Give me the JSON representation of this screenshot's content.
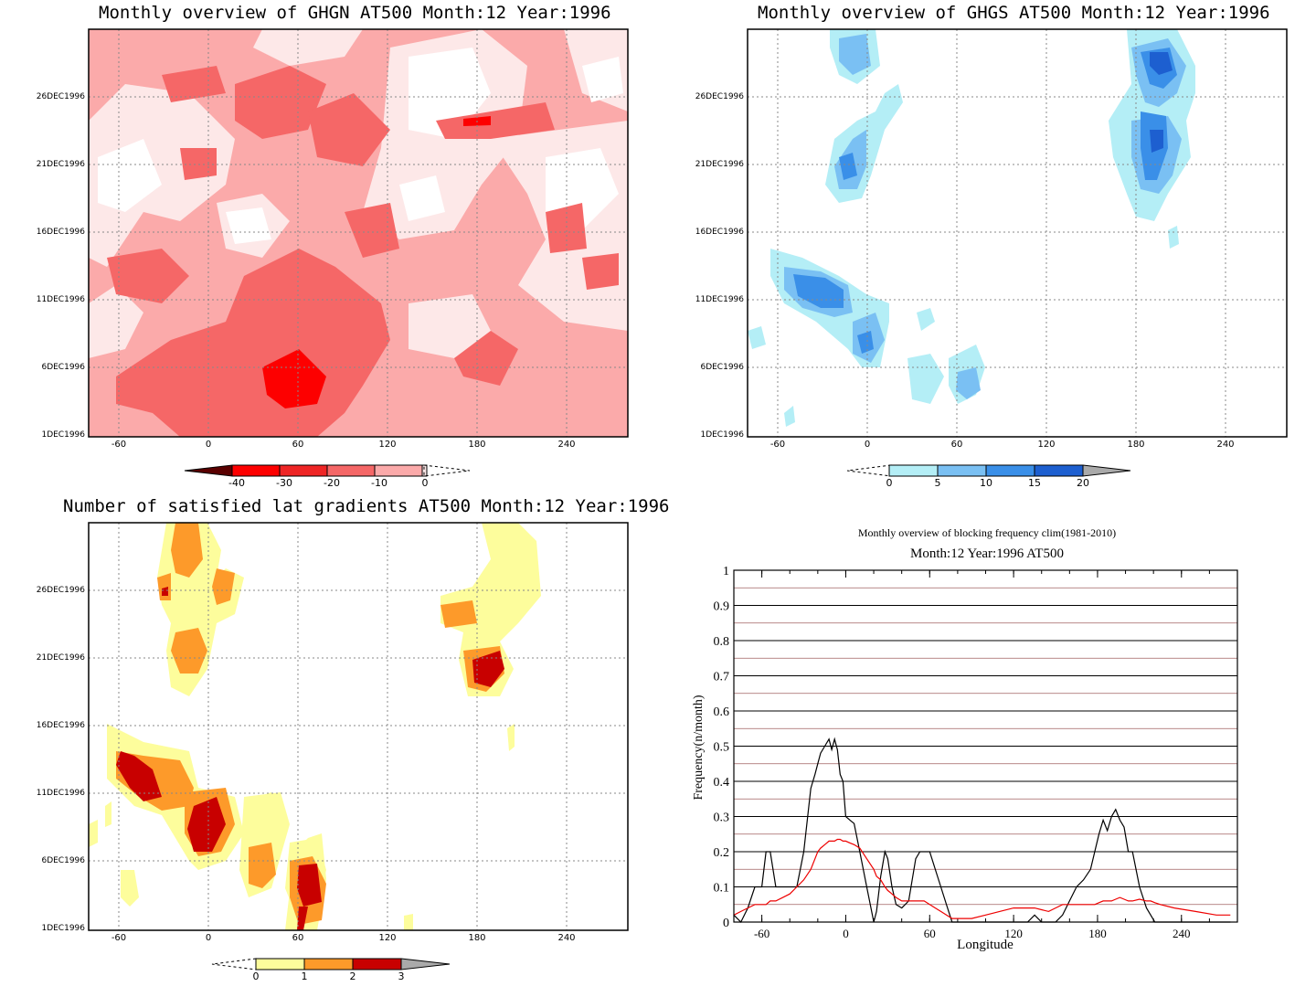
{
  "panels": {
    "ghgn": {
      "title": "Monthly overview of GHGN AT500 Month:12 Year:1996",
      "yticks": [
        "26DEC1996",
        "21DEC1996",
        "16DEC1996",
        "11DEC1996",
        "6DEC1996",
        "1DEC1996"
      ],
      "xticks": [
        "-60",
        "0",
        "60",
        "120",
        "180",
        "240"
      ],
      "colorbar": [
        "-40",
        "-30",
        "-20",
        "-10",
        "0"
      ],
      "colors": [
        "#ffffff",
        "#fde8e8",
        "#fbaaaa",
        "#f56767",
        "#ee2525",
        "#fd0000",
        "#5a0000"
      ]
    },
    "ghgs": {
      "title": "Monthly overview of GHGS AT500 Month:12 Year:1996",
      "yticks": [
        "26DEC1996",
        "21DEC1996",
        "16DEC1996",
        "11DEC1996",
        "6DEC1996",
        "1DEC1996"
      ],
      "xticks": [
        "-60",
        "0",
        "60",
        "120",
        "180",
        "240"
      ],
      "colorbar": [
        "0",
        "5",
        "10",
        "15",
        "20"
      ],
      "colors": [
        "#b4eef6",
        "#7ac0f3",
        "#3a8fe8",
        "#1d5fd0",
        "#aaaaaa"
      ]
    },
    "gradients": {
      "title": "Number of satisfied lat gradients AT500 Month:12 Year:1996",
      "yticks": [
        "26DEC1996",
        "21DEC1996",
        "16DEC1996",
        "11DEC1996",
        "6DEC1996",
        "1DEC1996"
      ],
      "xticks": [
        "-60",
        "0",
        "60",
        "120",
        "180",
        "240"
      ],
      "colorbar": [
        "0",
        "1",
        "2",
        "3"
      ],
      "colors": [
        "#fdfd9c",
        "#fd9a2a",
        "#c80000",
        "#aaaaaa"
      ]
    },
    "frequency": {
      "title": "Monthly overview of blocking frequency clim(1981-2010)",
      "subtitle": "Month:12 Year:1996  AT500",
      "ylabel": "Frequency(n/month)",
      "xlabel": "Longitude",
      "yticks": [
        "0",
        "0.1",
        "0.2",
        "0.3",
        "0.4",
        "0.5",
        "0.6",
        "0.7",
        "0.8",
        "0.9",
        "1"
      ],
      "xticks": [
        "-60",
        "0",
        "60",
        "120",
        "180",
        "240"
      ],
      "series_colors": [
        "#000000",
        "#ee0000"
      ]
    }
  },
  "chart_data": [
    {
      "type": "heatmap",
      "title": "Monthly overview of GHGN AT500 Month:12 Year:1996",
      "xlim": [
        -75,
        285
      ],
      "ylim": [
        "1DEC1996",
        "31DEC1996"
      ],
      "levels": [
        -40,
        -30,
        -20,
        -10,
        0
      ]
    },
    {
      "type": "heatmap",
      "title": "Monthly overview of GHGS AT500 Month:12 Year:1996",
      "xlim": [
        -75,
        285
      ],
      "ylim": [
        "1DEC1996",
        "31DEC1996"
      ],
      "levels": [
        0,
        5,
        10,
        15,
        20
      ]
    },
    {
      "type": "heatmap",
      "title": "Number of satisfied lat gradients AT500 Month:12 Year:1996",
      "xlim": [
        -75,
        285
      ],
      "ylim": [
        "1DEC1996",
        "31DEC1996"
      ],
      "levels": [
        0,
        1,
        2,
        3
      ]
    },
    {
      "type": "line",
      "title": "Monthly overview of blocking frequency clim(1981-2010)",
      "subtitle": "Month:12 Year:1996  AT500",
      "xlabel": "Longitude",
      "ylabel": "Frequency(n/month)",
      "xlim": [
        -80,
        280
      ],
      "ylim": [
        0,
        1
      ],
      "x": [
        -80,
        -75,
        -70,
        -65,
        -60,
        -57,
        -54,
        -50,
        -45,
        -40,
        -35,
        -30,
        -25,
        -22,
        -20,
        -18,
        -15,
        -12,
        -10,
        -8,
        -6,
        -4,
        -2,
        0,
        3,
        6,
        10,
        15,
        20,
        22,
        25,
        28,
        30,
        33,
        36,
        40,
        45,
        50,
        53,
        56,
        60,
        64,
        68,
        72,
        76,
        80,
        90,
        100,
        110,
        120,
        130,
        135,
        140,
        145,
        150,
        155,
        160,
        165,
        170,
        175,
        178,
        181,
        184,
        187,
        190,
        193,
        196,
        199,
        202,
        205,
        210,
        215,
        218,
        221,
        225,
        235,
        250,
        265,
        275
      ],
      "series": [
        {
          "name": "",
          "values": [
            0.02,
            0.0,
            0.04,
            0.1,
            0.1,
            0.2,
            0.2,
            0.1,
            0.1,
            0.1,
            0.1,
            0.2,
            0.38,
            0.42,
            0.45,
            0.48,
            0.5,
            0.52,
            0.49,
            0.52,
            0.49,
            0.42,
            0.4,
            0.3,
            0.29,
            0.28,
            0.2,
            0.1,
            0.0,
            0.03,
            0.13,
            0.2,
            0.18,
            0.1,
            0.05,
            0.04,
            0.06,
            0.18,
            0.2,
            0.2,
            0.2,
            0.15,
            0.1,
            0.05,
            0.0,
            0.0,
            0.0,
            0.0,
            0.0,
            0.0,
            0.0,
            0.02,
            0.0,
            0.0,
            0.0,
            0.02,
            0.06,
            0.1,
            0.12,
            0.15,
            0.2,
            0.25,
            0.29,
            0.26,
            0.3,
            0.32,
            0.29,
            0.27,
            0.2,
            0.2,
            0.1,
            0.04,
            0.02,
            0.0,
            0.0,
            0.0,
            0.0,
            0.0,
            0.0
          ]
        },
        {
          "name": "",
          "values": [
            0.02,
            0.03,
            0.04,
            0.05,
            0.05,
            0.05,
            0.06,
            0.06,
            0.07,
            0.08,
            0.1,
            0.12,
            0.15,
            0.18,
            0.2,
            0.21,
            0.22,
            0.23,
            0.23,
            0.23,
            0.235,
            0.235,
            0.23,
            0.23,
            0.225,
            0.22,
            0.21,
            0.18,
            0.15,
            0.13,
            0.12,
            0.1,
            0.09,
            0.08,
            0.07,
            0.06,
            0.06,
            0.06,
            0.06,
            0.06,
            0.05,
            0.04,
            0.03,
            0.02,
            0.01,
            0.01,
            0.01,
            0.02,
            0.03,
            0.04,
            0.04,
            0.04,
            0.035,
            0.03,
            0.04,
            0.05,
            0.05,
            0.05,
            0.05,
            0.05,
            0.05,
            0.055,
            0.06,
            0.06,
            0.06,
            0.065,
            0.07,
            0.065,
            0.06,
            0.06,
            0.065,
            0.06,
            0.06,
            0.055,
            0.05,
            0.04,
            0.03,
            0.02,
            0.02
          ]
        }
      ]
    }
  ]
}
